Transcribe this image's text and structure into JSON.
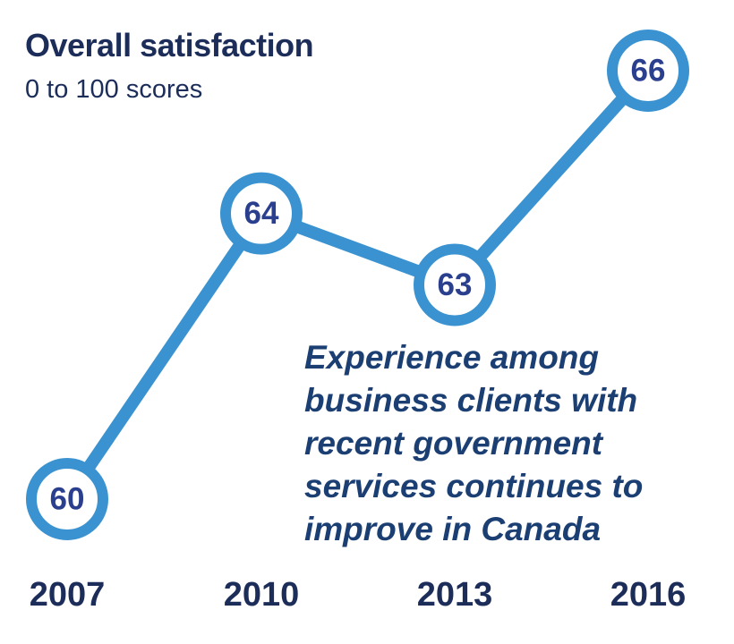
{
  "colors": {
    "line": "#3a93d0",
    "marker_fill": "#ffffff",
    "label": "#2b3f8f",
    "text_dark": "#1c2d5a",
    "annotation": "#1c3f73"
  },
  "chart_data": {
    "type": "line",
    "title": "Overall satisfaction",
    "subtitle": "0 to 100 scores",
    "categories": [
      "2007",
      "2010",
      "2013",
      "2016"
    ],
    "series": [
      {
        "values": [
          60,
          64,
          63,
          66
        ]
      }
    ],
    "annotation": "Experience among business clients with recent government services continues to improve in Canada",
    "grid": false
  }
}
